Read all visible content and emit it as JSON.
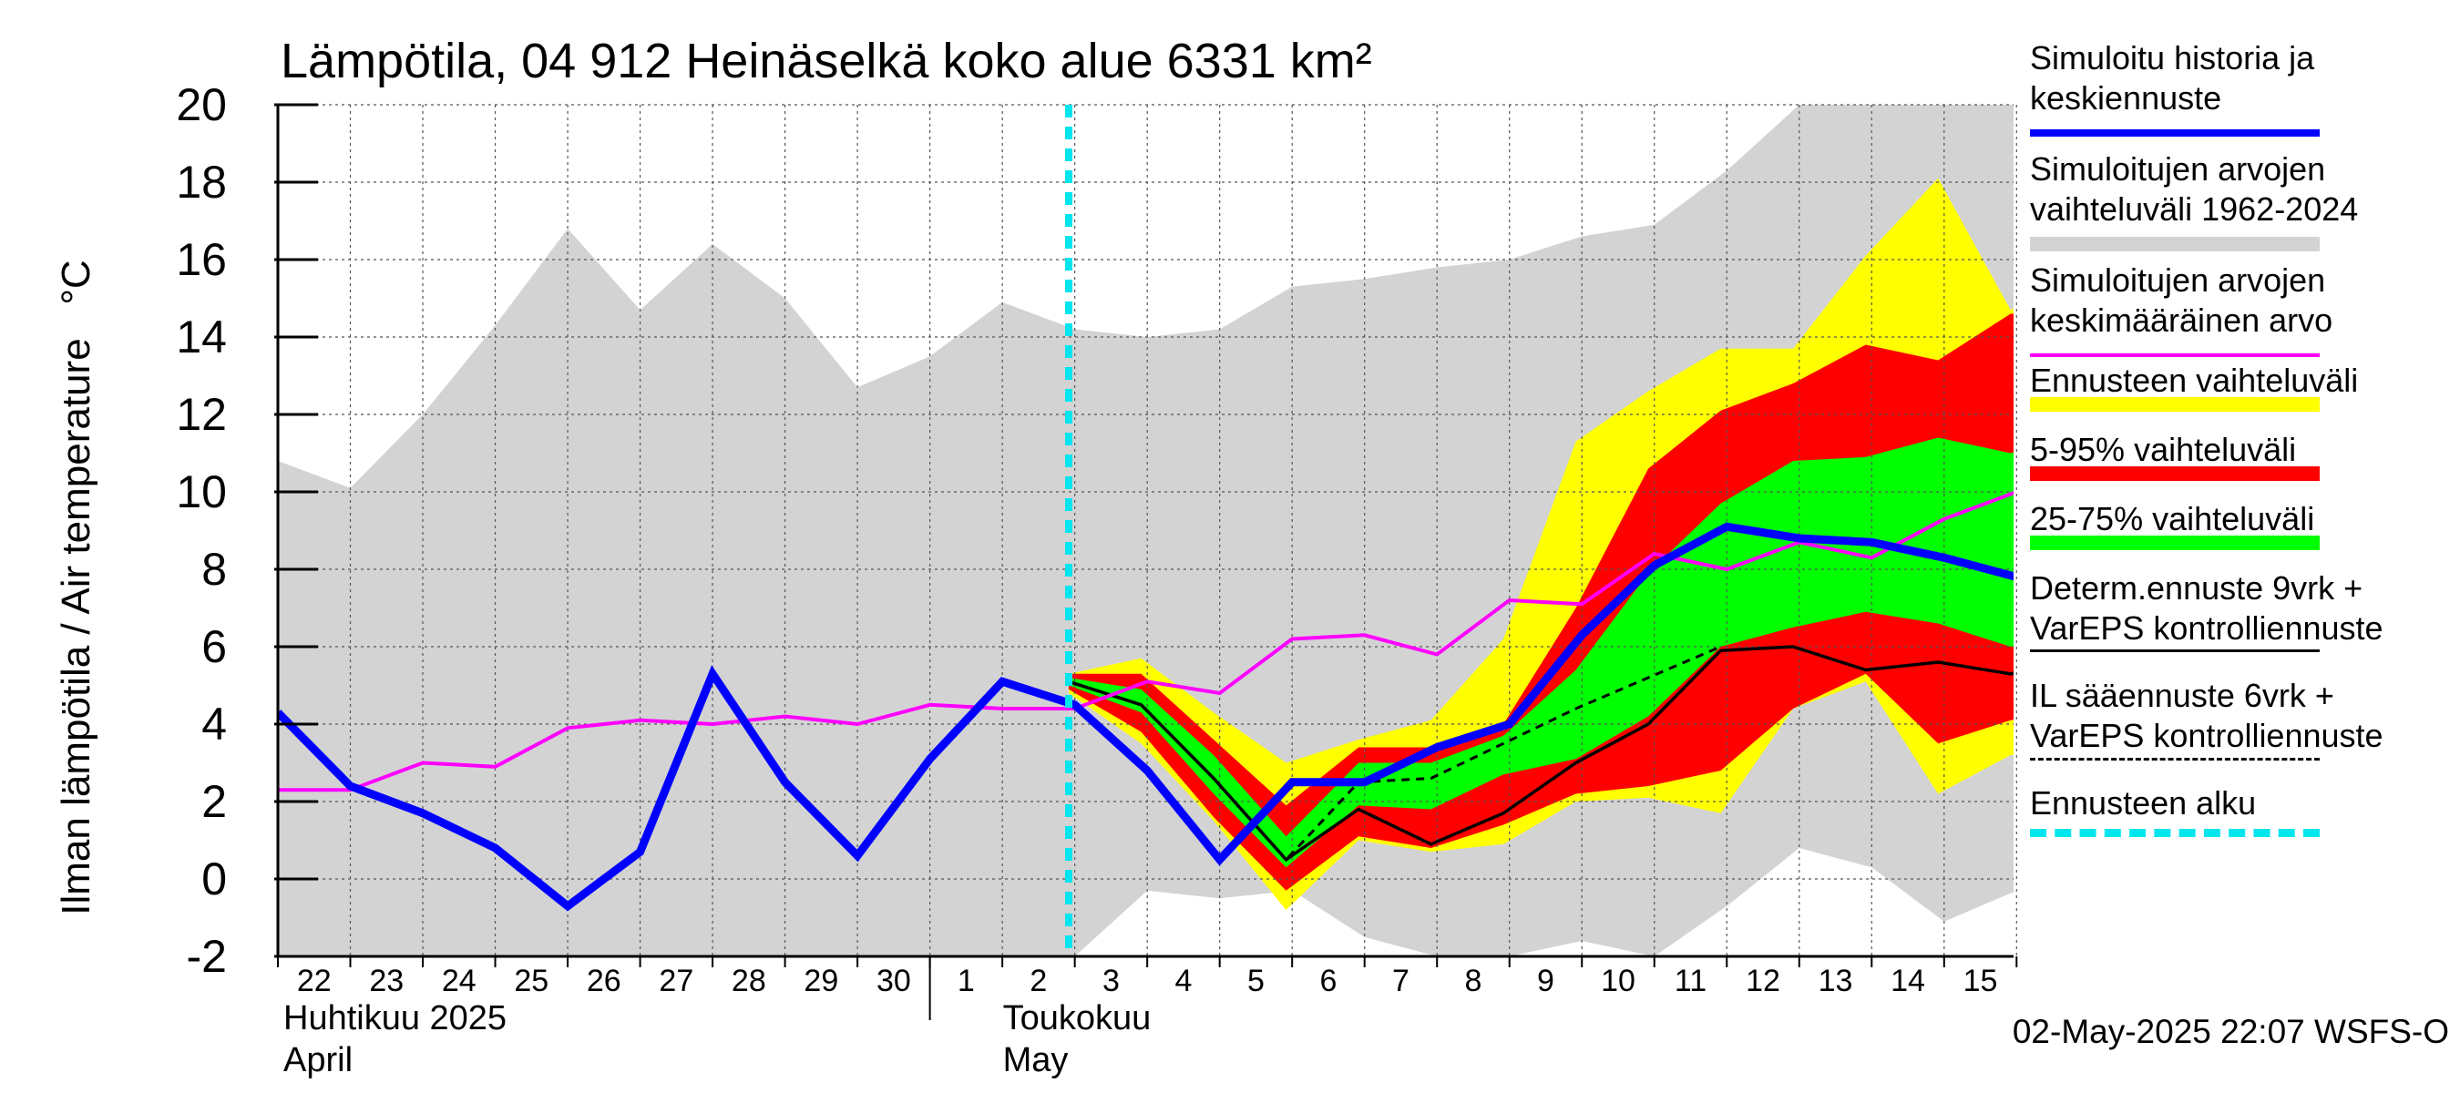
{
  "chart_data": {
    "type": "line",
    "title": "Lämpötila, 04 912 Heinäselkä koko alue 6331 km²",
    "ylabel": "Ilman lämpötila / Air temperature   °C",
    "ylim": [
      -2,
      20
    ],
    "yticks": [
      "-2",
      "0",
      "2",
      "4",
      "6",
      "8",
      "10",
      "12",
      "14",
      "16",
      "18",
      "20"
    ],
    "xlim": [
      "2025-04-22",
      "2025-05-15T23:00"
    ],
    "xtick_labels": [
      "22",
      "23",
      "24",
      "25",
      "26",
      "27",
      "28",
      "29",
      "30",
      "1",
      "2",
      "3",
      "4",
      "5",
      "6",
      "7",
      "8",
      "9",
      "10",
      "11",
      "12",
      "13",
      "14",
      "15"
    ],
    "month_labels": [
      {
        "fi": "Huhtikuu  2025",
        "en": "April"
      },
      {
        "fi": "Toukokuu",
        "en": "May"
      }
    ],
    "grid": true,
    "legend_position": "right",
    "forecast_start": "2025-05-02T22:00",
    "series": [
      {
        "name": "Simuloitu historia ja keskiennuste",
        "color": "#0000ff",
        "x": [
          "2025-04-22",
          "2025-04-23",
          "2025-04-24",
          "2025-04-25",
          "2025-04-26",
          "2025-04-27",
          "2025-04-28",
          "2025-04-29",
          "2025-04-30",
          "2025-05-01",
          "2025-05-02",
          "2025-05-03",
          "2025-05-04",
          "2025-05-05",
          "2025-05-06",
          "2025-05-07",
          "2025-05-08",
          "2025-05-09",
          "2025-05-10",
          "2025-05-11",
          "2025-05-12",
          "2025-05-13",
          "2025-05-14",
          "2025-05-15",
          "2025-05-16"
        ],
        "y": [
          4.3,
          2.4,
          1.7,
          0.8,
          -0.7,
          0.7,
          5.3,
          2.5,
          0.6,
          3.1,
          5.1,
          4.5,
          2.8,
          0.5,
          2.5,
          2.5,
          3.4,
          4.0,
          6.3,
          8.1,
          9.1,
          8.8,
          8.7,
          8.3,
          7.8
        ]
      },
      {
        "name": "Simuloitujen arvojen keskimääräinen arvo",
        "color": "#ff00ff",
        "x": [
          "2025-04-22",
          "2025-04-23",
          "2025-04-24",
          "2025-04-25",
          "2025-04-26",
          "2025-04-27",
          "2025-04-28",
          "2025-04-29",
          "2025-04-30",
          "2025-05-01",
          "2025-05-02",
          "2025-05-03",
          "2025-05-04",
          "2025-05-05",
          "2025-05-06",
          "2025-05-07",
          "2025-05-08",
          "2025-05-09",
          "2025-05-10",
          "2025-05-11",
          "2025-05-12",
          "2025-05-13",
          "2025-05-14",
          "2025-05-15",
          "2025-05-16"
        ],
        "y": [
          2.3,
          2.3,
          3.0,
          2.9,
          3.9,
          4.1,
          4.0,
          4.2,
          4.0,
          4.5,
          4.4,
          4.4,
          5.1,
          4.8,
          6.2,
          6.3,
          5.8,
          7.2,
          7.1,
          8.4,
          8.0,
          8.7,
          8.3,
          9.3,
          10.0
        ]
      },
      {
        "name": "Determ.ennuste 9vrk + VarEPS kontrolliennuste",
        "color": "#000000",
        "x": [
          "2025-05-02T22:00",
          "2025-05-03T22:00",
          "2025-05-04T22:00",
          "2025-05-05T22:00",
          "2025-05-06T22:00",
          "2025-05-07T22:00",
          "2025-05-08T22:00",
          "2025-05-09T22:00",
          "2025-05-10T22:00",
          "2025-05-11T22:00",
          "2025-05-12T22:00",
          "2025-05-13T22:00",
          "2025-05-14T22:00",
          "2025-05-15T22:00",
          "2025-05-16T22:00"
        ],
        "y": [
          5.1,
          4.5,
          2.6,
          0.5,
          1.8,
          0.9,
          1.7,
          3.0,
          4.0,
          5.9,
          6.0,
          5.4,
          5.6,
          5.3,
          5.7
        ]
      },
      {
        "name": "IL sääennuste 6vrk + VarEPS kontrolliennuste",
        "color": "#000000",
        "dashed": true,
        "x": [
          "2025-05-02T22:00",
          "2025-05-03T22:00",
          "2025-05-04T22:00",
          "2025-05-05T22:00",
          "2025-05-06T22:00",
          "2025-05-07T22:00",
          "2025-05-08T22:00",
          "2025-05-09T22:00",
          "2025-05-10T22:00",
          "2025-05-11T22:00"
        ],
        "y": [
          5.1,
          4.5,
          2.6,
          0.5,
          2.5,
          2.6,
          3.5,
          4.4,
          5.2,
          6.0
        ]
      }
    ],
    "bands": [
      {
        "name": "Simuloitujen arvojen vaihteluväli 1962-2024",
        "color": "#d3d3d3",
        "x": [
          "2025-04-22",
          "2025-04-23",
          "2025-04-24",
          "2025-04-25",
          "2025-04-26",
          "2025-04-27",
          "2025-04-28",
          "2025-04-29",
          "2025-04-30",
          "2025-05-01",
          "2025-05-02",
          "2025-05-03",
          "2025-05-04",
          "2025-05-05",
          "2025-05-06",
          "2025-05-07",
          "2025-05-08",
          "2025-05-09",
          "2025-05-10",
          "2025-05-11",
          "2025-05-12",
          "2025-05-13",
          "2025-05-14",
          "2025-05-15",
          "2025-05-16"
        ],
        "low": [
          -2,
          -2,
          -2,
          -2,
          -2,
          -2,
          -2,
          -2,
          -2,
          -2,
          -2,
          -2,
          -0.3,
          -0.5,
          -0.3,
          -1.5,
          -2,
          -2,
          -1.6,
          -2,
          -0.7,
          0.8,
          0.3,
          -1.1,
          -0.3
        ],
        "high": [
          10.8,
          10.1,
          12.0,
          14.3,
          16.8,
          14.7,
          16.4,
          15.0,
          12.7,
          13.5,
          14.9,
          14.2,
          14.0,
          14.2,
          15.3,
          15.5,
          15.8,
          16.0,
          16.6,
          16.9,
          18.3,
          20,
          20,
          20,
          20
        ]
      },
      {
        "name": "Ennusteen vaihteluväli",
        "color": "#ffff00",
        "x": [
          "2025-05-02T22:00",
          "2025-05-03T22:00",
          "2025-05-04T22:00",
          "2025-05-05T22:00",
          "2025-05-06T22:00",
          "2025-05-07T22:00",
          "2025-05-08T22:00",
          "2025-05-09T22:00",
          "2025-05-10T22:00",
          "2025-05-11T22:00",
          "2025-05-12T22:00",
          "2025-05-13T22:00",
          "2025-05-14T22:00",
          "2025-05-15T22:00",
          "2025-05-16T22:00"
        ],
        "low": [
          4.8,
          3.5,
          1.5,
          -0.8,
          1.0,
          0.7,
          0.9,
          2.0,
          2.1,
          1.7,
          4.4,
          5.1,
          2.2,
          3.2,
          3.3
        ],
        "high": [
          5.3,
          5.7,
          4.3,
          3.0,
          3.6,
          4.1,
          6.2,
          11.3,
          12.6,
          13.7,
          13.7,
          16.1,
          18.1,
          14.7,
          15.8
        ]
      },
      {
        "name": "5-95% vaihteluväli",
        "color": "#ff0000",
        "x": [
          "2025-05-02T22:00",
          "2025-05-03T22:00",
          "2025-05-04T22:00",
          "2025-05-05T22:00",
          "2025-05-06T22:00",
          "2025-05-07T22:00",
          "2025-05-08T22:00",
          "2025-05-09T22:00",
          "2025-05-10T22:00",
          "2025-05-11T22:00",
          "2025-05-12T22:00",
          "2025-05-13T22:00",
          "2025-05-14T22:00",
          "2025-05-15T22:00",
          "2025-05-16T22:00"
        ],
        "low": [
          4.9,
          3.8,
          1.6,
          -0.3,
          1.1,
          0.8,
          1.4,
          2.2,
          2.4,
          2.8,
          4.4,
          5.3,
          3.5,
          4.1,
          4.4
        ],
        "high": [
          5.3,
          5.3,
          3.6,
          1.9,
          3.4,
          3.4,
          4.0,
          7.0,
          10.6,
          12.1,
          12.8,
          13.8,
          13.4,
          14.6,
          14.6
        ]
      },
      {
        "name": "25-75% vaihteluväli",
        "color": "#00ff00",
        "x": [
          "2025-05-02T22:00",
          "2025-05-03T22:00",
          "2025-05-04T22:00",
          "2025-05-05T22:00",
          "2025-05-06T22:00",
          "2025-05-07T22:00",
          "2025-05-08T22:00",
          "2025-05-09T22:00",
          "2025-05-10T22:00",
          "2025-05-11T22:00",
          "2025-05-12T22:00",
          "2025-05-13T22:00",
          "2025-05-14T22:00",
          "2025-05-15T22:00",
          "2025-05-16T22:00"
        ],
        "low": [
          5.0,
          4.3,
          2.2,
          0.3,
          1.9,
          1.8,
          2.7,
          3.1,
          4.2,
          6.0,
          6.5,
          6.9,
          6.6,
          6.0,
          6.3
        ],
        "high": [
          5.2,
          4.9,
          3.2,
          1.1,
          3.0,
          3.0,
          3.7,
          5.4,
          7.9,
          9.7,
          10.8,
          10.9,
          11.4,
          11.0,
          11.5
        ]
      }
    ],
    "legend": [
      {
        "label": "Simuloitu historia ja\nkeskiennuste",
        "color": "#0000ff",
        "style": "line-thick"
      },
      {
        "label": "Simuloitujen arvojen\nvaihteluväli 1962-2024",
        "color": "#d3d3d3",
        "style": "band"
      },
      {
        "label": "Simuloitujen arvojen\nkeskimääräinen arvo",
        "color": "#ff00ff",
        "style": "line-thin"
      },
      {
        "label": "Ennusteen vaihteluväli",
        "color": "#ffff00",
        "style": "band"
      },
      {
        "label": "5-95% vaihteluväli",
        "color": "#ff0000",
        "style": "band"
      },
      {
        "label": "25-75% vaihteluväli",
        "color": "#00ff00",
        "style": "band"
      },
      {
        "label": "Determ.ennuste 9vrk +\nVarEPS kontrolliennuste",
        "color": "#000000",
        "style": "line-black"
      },
      {
        "label": "IL sääennuste 6vrk  +\n  VarEPS kontrolliennuste",
        "color": "#000000",
        "style": "line-dashed"
      },
      {
        "label": "Ennusteen alku",
        "color": "#00e5ee",
        "style": "line-cyan-dashed"
      }
    ]
  },
  "footer": {
    "timestamp": "02-May-2025 22:07 WSFS-O"
  }
}
